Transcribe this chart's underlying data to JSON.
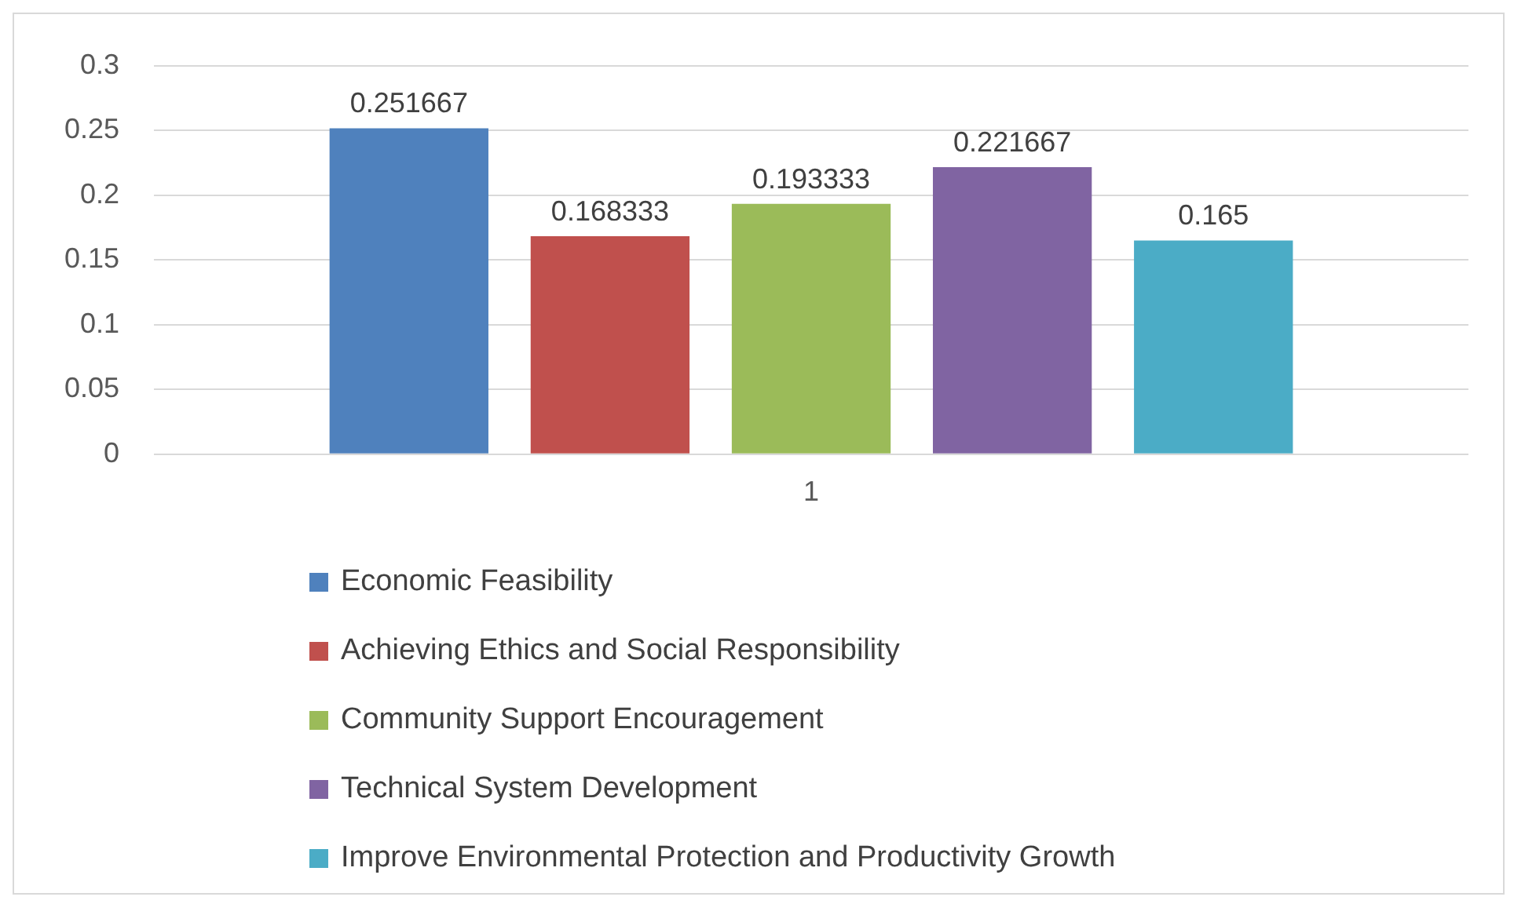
{
  "chart_data": {
    "type": "bar",
    "categories": [
      "1"
    ],
    "series": [
      {
        "name": "Economic Feasibility",
        "color": "#4f81bd",
        "values": [
          0.251667
        ]
      },
      {
        "name": "Achieving Ethics and Social Responsibility",
        "color": "#c0504d",
        "values": [
          0.168333
        ]
      },
      {
        "name": "Community Support Encouragement",
        "color": "#9bbb59",
        "values": [
          0.193333
        ]
      },
      {
        "name": "Technical System Development",
        "color": "#8064a2",
        "values": [
          0.221667
        ]
      },
      {
        "name": "Improve Environmental Protection and Productivity Growth",
        "color": "#4bacc6",
        "values": [
          0.165
        ]
      }
    ],
    "ylim": [
      0,
      0.3
    ],
    "yticks": [
      0,
      0.05,
      0.1,
      0.15,
      0.2,
      0.25,
      0.3
    ],
    "grid": "y",
    "legend": "bottom",
    "data_labels": true
  }
}
